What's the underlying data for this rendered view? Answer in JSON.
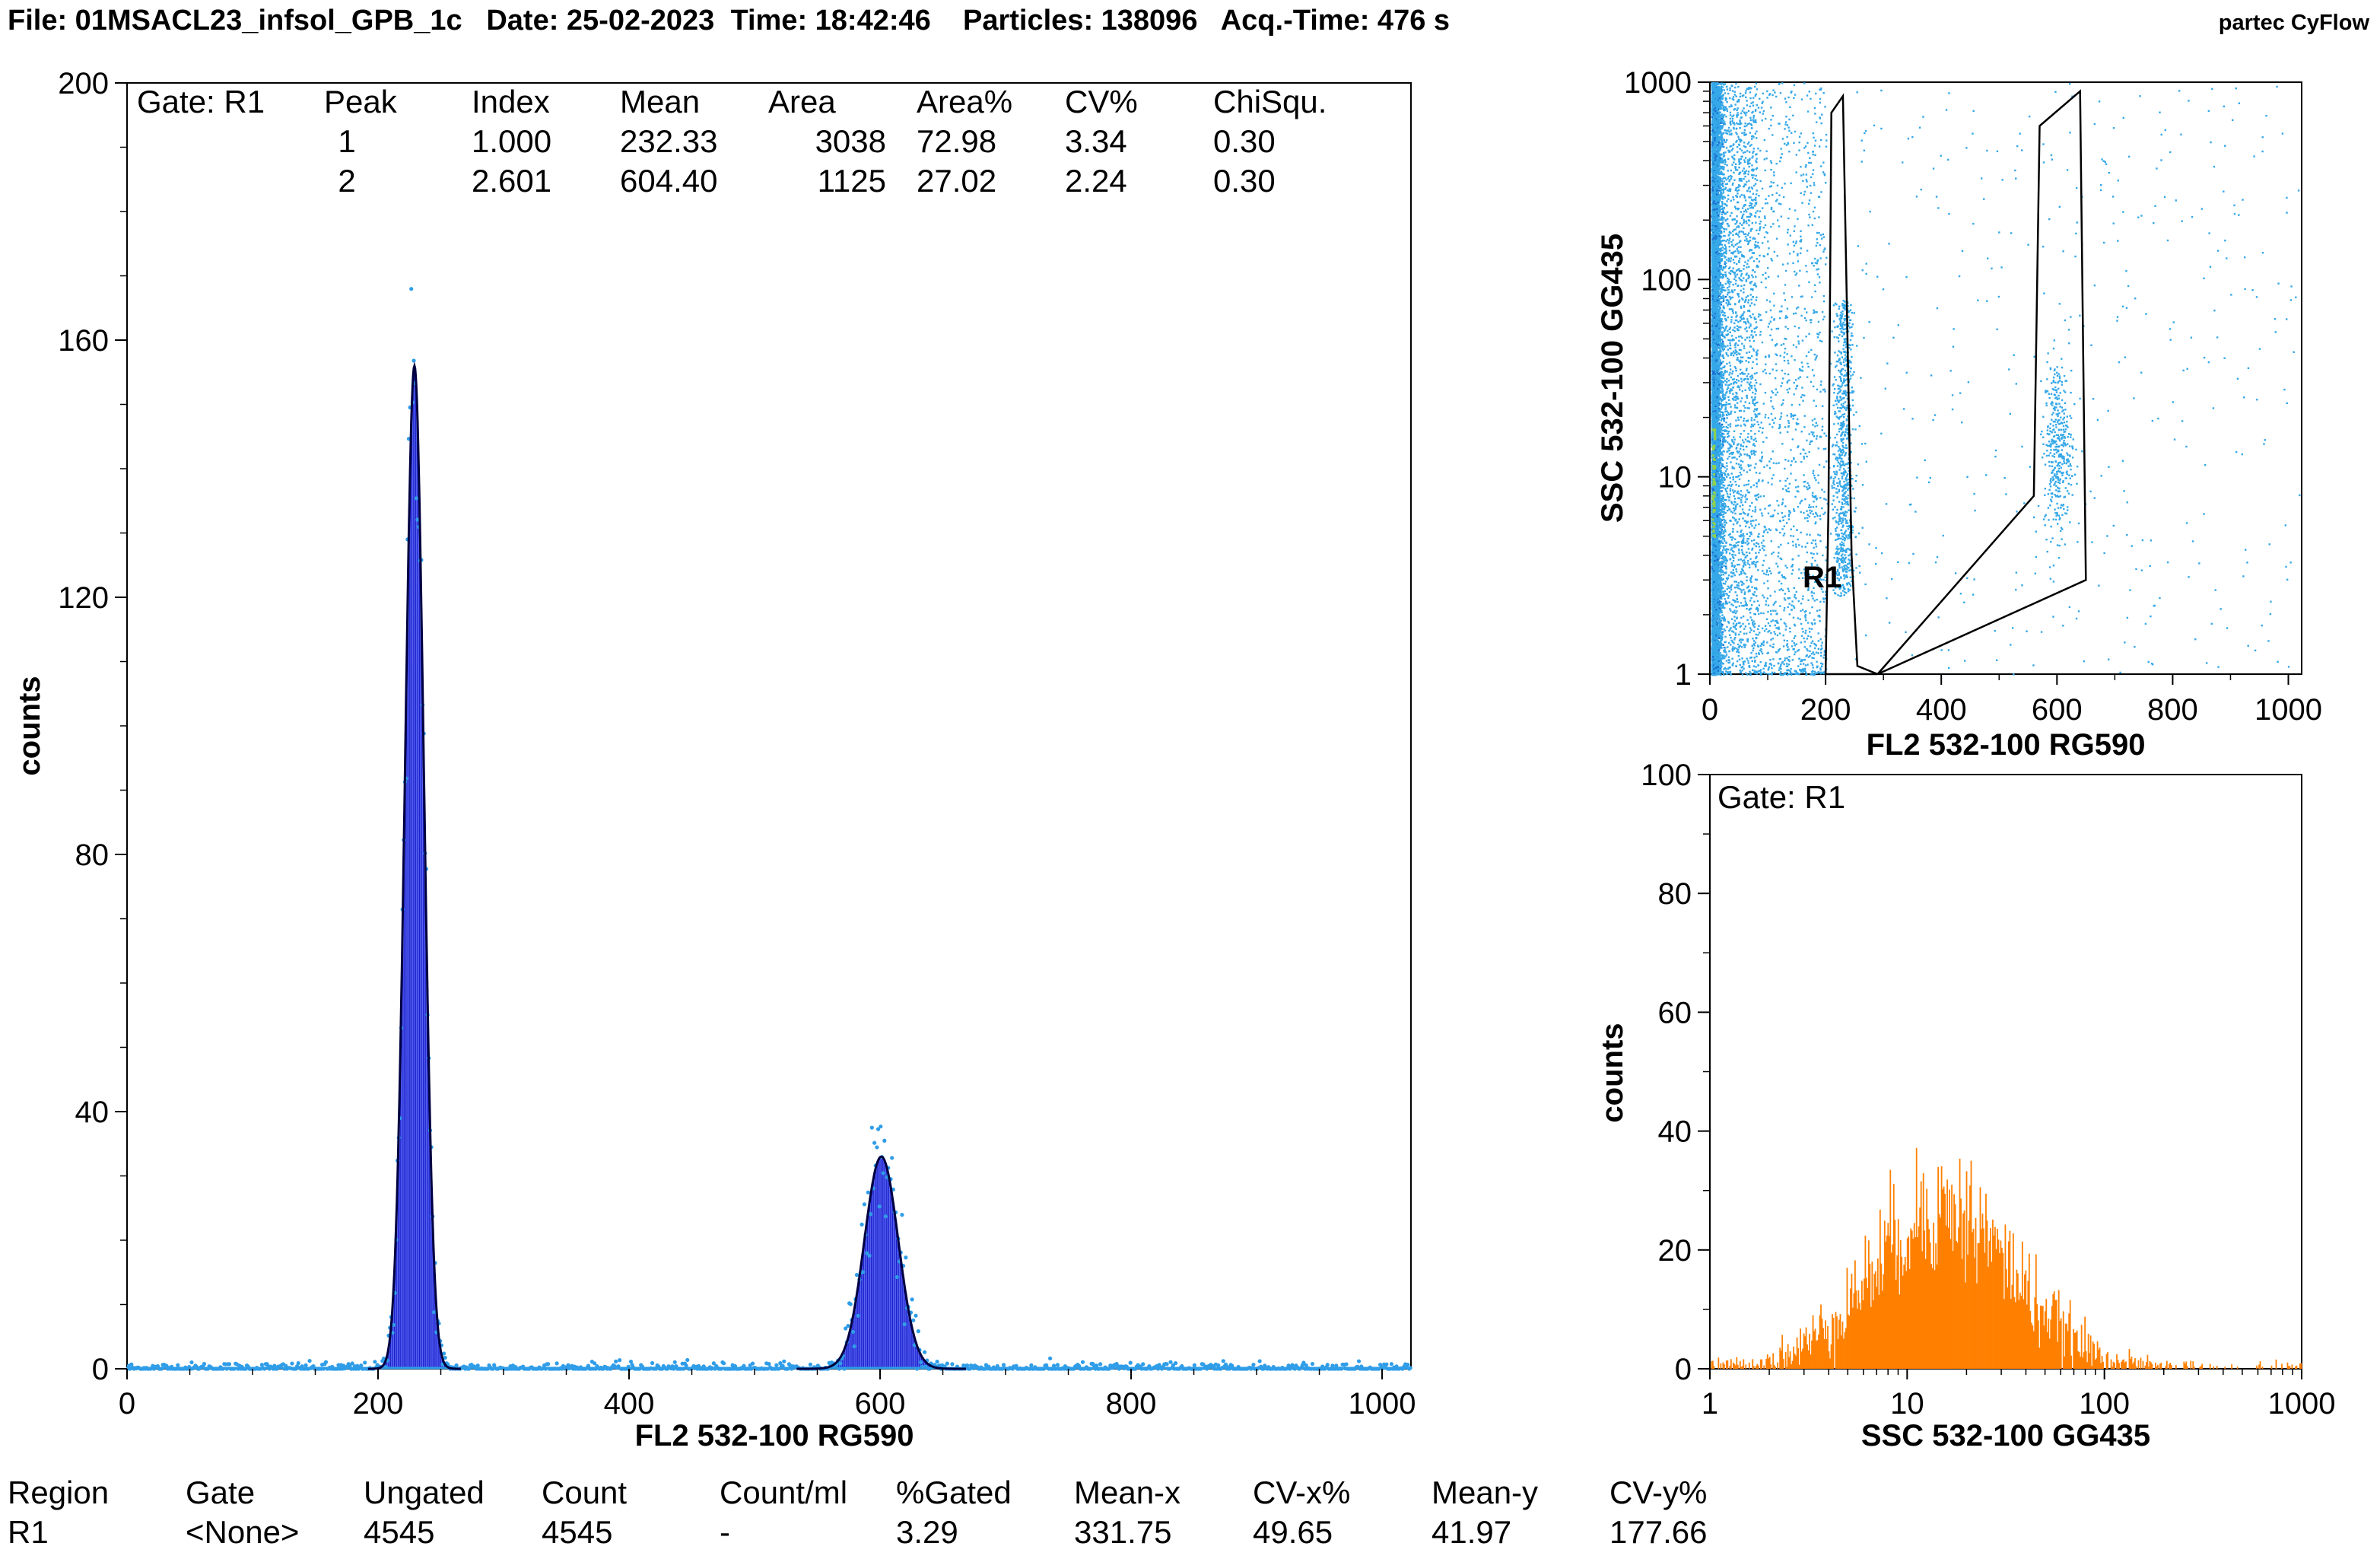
{
  "header": {
    "file_label": "File: 01MSACL23_infsol_GPB_1c",
    "date_label": "Date: 25-02-2023",
    "time_label": "Time: 18:42:46",
    "particles_label": "Particles: 138096",
    "acq_label": "Acq.-Time: 476 s",
    "brand": "partec CyFlow"
  },
  "colors": {
    "histogram_fill": "#1010c0",
    "histogram_outline": "#000040",
    "data_points": "#2f9de8",
    "dotplot_points": "#35a8e8",
    "orange_hist": "#ff8000",
    "gate_line": "#000000"
  },
  "chart_data": [
    {
      "type": "bar",
      "xlabel": "FL2  532-100 RG590",
      "ylabel": "counts",
      "xlim": [
        0,
        1023
      ],
      "ylim": [
        0,
        200
      ],
      "xticks": [
        "0",
        "200",
        "400",
        "600",
        "800",
        "1000"
      ],
      "yticks": [
        "0",
        "40",
        "80",
        "120",
        "160",
        "200"
      ],
      "peak_table": {
        "headers": [
          "Gate: R1",
          "Peak",
          "Index",
          "Mean",
          "Area",
          "Area%",
          "CV%",
          "ChiSqu."
        ],
        "rows": [
          [
            "",
            "1",
            "1.000",
            "232.33",
            "3038",
            "72.98",
            "3.34",
            "0.30"
          ],
          [
            "",
            "2",
            "2.601",
            "604.40",
            "1125",
            "27.02",
            "2.24",
            "0.30"
          ]
        ]
      },
      "series": [
        {
          "peak": 1,
          "center": 229,
          "height": 156,
          "sigma": 7.4
        },
        {
          "peak": 2,
          "center": 601,
          "height": 33,
          "sigma": 13.5
        }
      ]
    },
    {
      "type": "scatter",
      "xlabel": "FL2  532-100 RG590",
      "ylabel": "SSC  532-100 GG435",
      "xlim": [
        0,
        1023
      ],
      "ylim": [
        1,
        1000
      ],
      "yscale": "log",
      "xticks": [
        "0",
        "200",
        "400",
        "600",
        "800",
        "1000"
      ],
      "yticks": [
        "1",
        "10",
        "100",
        "1000"
      ],
      "region_label": "R1",
      "gate_polygon": [
        [
          200,
          1
        ],
        [
          205,
          7
        ],
        [
          210,
          700
        ],
        [
          230,
          850
        ],
        [
          245,
          4
        ],
        [
          255,
          1.1
        ],
        [
          290,
          1
        ]
      ],
      "gate_polygon_2": [
        [
          290,
          1
        ],
        [
          560,
          8
        ],
        [
          570,
          600
        ],
        [
          640,
          900
        ],
        [
          650,
          3
        ],
        [
          290,
          1
        ]
      ]
    },
    {
      "type": "bar",
      "title": "Gate: R1",
      "xlabel": "SSC  532-100 GG435",
      "ylabel": "counts",
      "xscale": "log",
      "xlim": [
        1,
        1000
      ],
      "ylim": [
        0,
        100
      ],
      "xticks": [
        "1",
        "10",
        "100",
        "1000"
      ],
      "yticks": [
        "0",
        "20",
        "40",
        "60",
        "80",
        "100"
      ],
      "distribution": {
        "peak_x": 15,
        "peak_y": 27,
        "max_y": 44
      }
    }
  ],
  "stats_table": {
    "headers": [
      "Region",
      "Gate",
      "Ungated",
      "Count",
      "Count/ml",
      "%Gated",
      "Mean-x",
      "CV-x%",
      "Mean-y",
      "CV-y%"
    ],
    "row": [
      "R1",
      "<None>",
      "4545",
      "4545",
      "-",
      "3.29",
      "331.75",
      "49.65",
      "41.97",
      "177.66"
    ]
  }
}
